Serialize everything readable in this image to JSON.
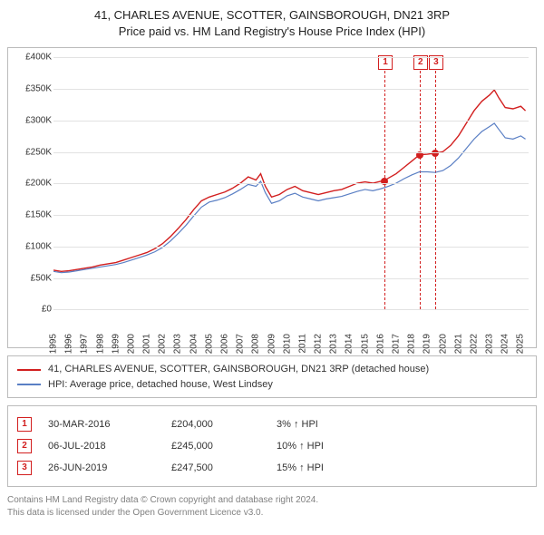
{
  "title_line1": "41, CHARLES AVENUE, SCOTTER, GAINSBOROUGH, DN21 3RP",
  "title_line2": "Price paid vs. HM Land Registry's House Price Index (HPI)",
  "chart": {
    "type": "line",
    "x_years": [
      1995,
      1996,
      1997,
      1998,
      1999,
      2000,
      2001,
      2002,
      2003,
      2004,
      2005,
      2006,
      2007,
      2008,
      2009,
      2010,
      2011,
      2012,
      2013,
      2014,
      2015,
      2016,
      2017,
      2018,
      2019,
      2020,
      2021,
      2022,
      2023,
      2024,
      2025
    ],
    "xlim": [
      1995,
      2025.5
    ],
    "ylim": [
      0,
      400000
    ],
    "ytick_step": 50000,
    "ytick_labels": [
      "£0",
      "£50K",
      "£100K",
      "£150K",
      "£200K",
      "£250K",
      "£300K",
      "£350K",
      "£400K"
    ],
    "background_color": "#ffffff",
    "grid_color": "#e2e2e2",
    "series": [
      {
        "name": "property",
        "label": "41, CHARLES AVENUE, SCOTTER, GAINSBOROUGH, DN21 3RP (detached house)",
        "color": "#d21f1f",
        "line_width": 1.4,
        "values_by_year": {
          "1995": 62000,
          "1995.5": 60000,
          "1996": 61000,
          "1996.5": 63000,
          "1997": 65000,
          "1997.5": 67000,
          "1998": 70000,
          "1998.5": 72000,
          "1999": 74000,
          "1999.5": 78000,
          "2000": 82000,
          "2000.5": 86000,
          "2001": 90000,
          "2001.5": 96000,
          "2002": 104000,
          "2002.5": 115000,
          "2003": 128000,
          "2003.5": 142000,
          "2004": 158000,
          "2004.5": 172000,
          "2005": 178000,
          "2005.5": 182000,
          "2006": 186000,
          "2006.5": 192000,
          "2007": 200000,
          "2007.5": 210000,
          "2008": 205000,
          "2008.3": 215000,
          "2008.6": 195000,
          "2009": 178000,
          "2009.5": 182000,
          "2010": 190000,
          "2010.5": 195000,
          "2011": 188000,
          "2011.5": 185000,
          "2012": 182000,
          "2012.5": 185000,
          "2013": 188000,
          "2013.5": 190000,
          "2014": 195000,
          "2014.5": 200000,
          "2015": 202000,
          "2015.5": 200000,
          "2016": 203000,
          "2016.25": 204000,
          "2016.5": 208000,
          "2017": 215000,
          "2017.5": 225000,
          "2018": 235000,
          "2018.5": 245000,
          "2019": 246000,
          "2019.5": 247500,
          "2020": 250000,
          "2020.5": 260000,
          "2021": 275000,
          "2021.5": 295000,
          "2022": 315000,
          "2022.5": 330000,
          "2023": 340000,
          "2023.3": 348000,
          "2023.6": 335000,
          "2024": 320000,
          "2024.5": 318000,
          "2025": 322000,
          "2025.3": 315000
        }
      },
      {
        "name": "hpi",
        "label": "HPI: Average price, detached house, West Lindsey",
        "color": "#5a7fc4",
        "line_width": 1.2,
        "values_by_year": {
          "1995": 60000,
          "1995.5": 58000,
          "1996": 59000,
          "1996.5": 61000,
          "1997": 63000,
          "1997.5": 65000,
          "1998": 67000,
          "1998.5": 69000,
          "1999": 71000,
          "1999.5": 74000,
          "2000": 78000,
          "2000.5": 82000,
          "2001": 86000,
          "2001.5": 91000,
          "2002": 98000,
          "2002.5": 108000,
          "2003": 120000,
          "2003.5": 133000,
          "2004": 148000,
          "2004.5": 162000,
          "2005": 170000,
          "2005.5": 173000,
          "2006": 177000,
          "2006.5": 183000,
          "2007": 190000,
          "2007.5": 198000,
          "2008": 195000,
          "2008.3": 203000,
          "2008.6": 185000,
          "2009": 168000,
          "2009.5": 172000,
          "2010": 180000,
          "2010.5": 184000,
          "2011": 178000,
          "2011.5": 175000,
          "2012": 172000,
          "2012.5": 175000,
          "2013": 177000,
          "2013.5": 179000,
          "2014": 183000,
          "2014.5": 187000,
          "2015": 190000,
          "2015.5": 188000,
          "2016": 191000,
          "2016.5": 195000,
          "2017": 200000,
          "2017.5": 207000,
          "2018": 213000,
          "2018.5": 218000,
          "2019": 218000,
          "2019.5": 217000,
          "2020": 220000,
          "2020.5": 228000,
          "2021": 240000,
          "2021.5": 255000,
          "2022": 270000,
          "2022.5": 282000,
          "2023": 290000,
          "2023.3": 295000,
          "2023.6": 285000,
          "2024": 272000,
          "2024.5": 270000,
          "2025": 275000,
          "2025.3": 270000
        }
      }
    ],
    "markers": [
      {
        "num": "1",
        "year": 2016.25,
        "value": 204000,
        "color": "#d21f1f"
      },
      {
        "num": "2",
        "year": 2018.5,
        "value": 245000,
        "color": "#d21f1f"
      },
      {
        "num": "3",
        "year": 2019.5,
        "value": 247500,
        "color": "#d21f1f"
      }
    ],
    "marker_box_border": "#d21f1f",
    "marker_box_text": "#d21f1f",
    "marker_vline_color": "#d21f1f"
  },
  "transactions": [
    {
      "num": "1",
      "date": "30-MAR-2016",
      "price": "£204,000",
      "diff": "3% ↑ HPI"
    },
    {
      "num": "2",
      "date": "06-JUL-2018",
      "price": "£245,000",
      "diff": "10% ↑ HPI"
    },
    {
      "num": "3",
      "date": "26-JUN-2019",
      "price": "£247,500",
      "diff": "15% ↑ HPI"
    }
  ],
  "footer_line1": "Contains HM Land Registry data © Crown copyright and database right 2024.",
  "footer_line2": "This data is licensed under the Open Government Licence v3.0."
}
